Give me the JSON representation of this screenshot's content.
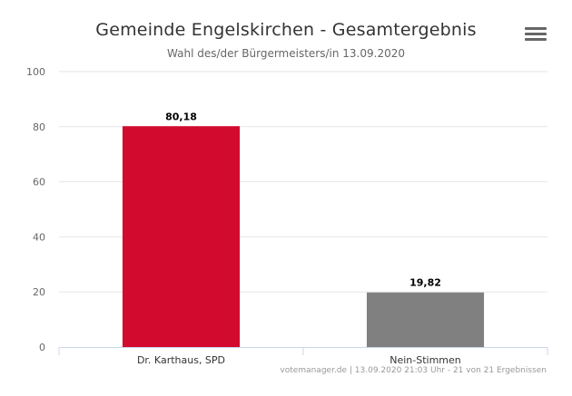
{
  "chart_data": {
    "type": "bar",
    "title": "Gemeinde Engelskirchen - Gesamtergebnis",
    "subtitle": "Wahl des/der Bürgermeisters/in 13.09.2020",
    "categories": [
      "Dr. Karthaus, SPD",
      "Nein-Stimmen"
    ],
    "values": [
      80.18,
      19.82
    ],
    "data_labels": [
      "80,18",
      "19,82"
    ],
    "colors": [
      "#d20a2e",
      "#808080"
    ],
    "ylim": [
      0,
      100
    ],
    "yticks": [
      0,
      20,
      40,
      60,
      80,
      100
    ],
    "ytick_labels": [
      "0",
      "20",
      "40",
      "60",
      "80",
      "100"
    ],
    "grid": true,
    "xlabel": "",
    "ylabel": ""
  },
  "menu": {
    "icon": "hamburger-menu-icon"
  },
  "credits": "votemanager.de | 13.09.2020 21:03 Uhr - 21 von 21 Ergebnissen"
}
